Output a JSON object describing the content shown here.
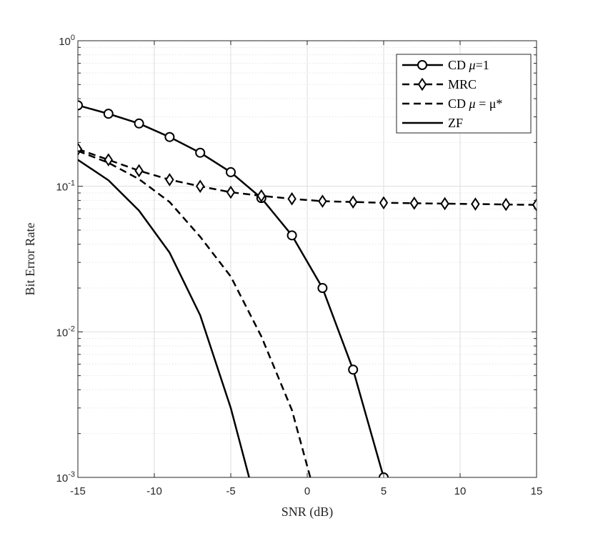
{
  "chart_data": {
    "type": "line",
    "xlabel": "SNR (dB)",
    "ylabel": "Bit Error Rate",
    "xlim": [
      -15,
      15
    ],
    "ylim": [
      0.001,
      1
    ],
    "yscale": "log",
    "grid": true,
    "legend_position": "top-right",
    "x_ticks": [
      "-15",
      "-10",
      "-5",
      "0",
      "5",
      "10",
      "15"
    ],
    "y_ticks": [
      {
        "base": "10",
        "exp": "-3"
      },
      {
        "base": "10",
        "exp": "-2"
      },
      {
        "base": "10",
        "exp": "-1"
      },
      {
        "base": "10",
        "exp": "0"
      }
    ],
    "series": [
      {
        "name": "CD μ=1",
        "legend": {
          "main": "CD ",
          "italic": "μ",
          "rest": "=1"
        },
        "style": "solid",
        "marker": "circle",
        "x": [
          -15,
          -13,
          -11,
          -9,
          -7,
          -5,
          -3,
          -1,
          1,
          3,
          5
        ],
        "y": [
          0.36,
          0.315,
          0.27,
          0.218,
          0.17,
          0.125,
          0.083,
          0.046,
          0.02,
          0.0055,
          0.001
        ]
      },
      {
        "name": "MRC",
        "legend": {
          "main": "MRC",
          "italic": "",
          "rest": ""
        },
        "style": "dashed",
        "marker": "diamond",
        "x": [
          -15,
          -13,
          -11,
          -9,
          -7,
          -5,
          -3,
          -1,
          1,
          3,
          5,
          7,
          9,
          11,
          13,
          15
        ],
        "y": [
          0.18,
          0.152,
          0.128,
          0.111,
          0.1,
          0.091,
          0.086,
          0.082,
          0.079,
          0.078,
          0.077,
          0.0765,
          0.076,
          0.0755,
          0.075,
          0.0745
        ]
      },
      {
        "name": "CD μ = μ*",
        "legend": {
          "main": "CD ",
          "italic": "μ",
          "rest": " = μ*"
        },
        "style": "dashed",
        "marker": "none",
        "x": [
          -15,
          -13,
          -11,
          -9,
          -7,
          -5,
          -3,
          -1,
          0.2
        ],
        "y": [
          0.175,
          0.145,
          0.112,
          0.078,
          0.045,
          0.024,
          0.0093,
          0.0029,
          0.001
        ]
      },
      {
        "name": "ZF",
        "legend": {
          "main": "ZF",
          "italic": "",
          "rest": ""
        },
        "style": "solid",
        "marker": "none",
        "x": [
          -15,
          -13,
          -11,
          -9,
          -7,
          -5,
          -3.8
        ],
        "y": [
          0.152,
          0.11,
          0.068,
          0.035,
          0.013,
          0.003,
          0.001
        ]
      }
    ]
  }
}
